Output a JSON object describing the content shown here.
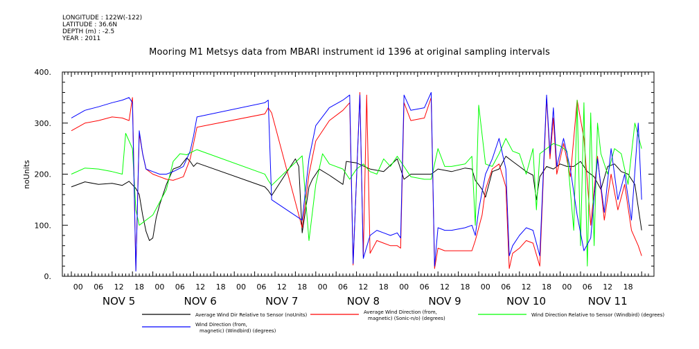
{
  "meta": {
    "longitude": "LONGITUDE : 122W(-122)",
    "latitude": "LATITUDE : 36.6N",
    "depth": "DEPTH (m) : -2.5",
    "year": "YEAR : 2011"
  },
  "chart_data": {
    "type": "line",
    "title": "Mooring M1 Metsys data from MBARI instrument id 1396 at original sampling intervals",
    "ylabel": "noUnits",
    "xlabel": "",
    "ylim": [
      0,
      400
    ],
    "yticks": [
      0,
      100,
      200,
      300,
      400
    ],
    "ytick_labels": [
      "0.",
      "100.",
      "200.",
      "300.",
      "400."
    ],
    "x_unit": "hours from 2011-11-04 22:00",
    "xlim": [
      0,
      168
    ],
    "hour_ticks": [
      "00",
      "06",
      "12",
      "18",
      "00",
      "06",
      "12",
      "18",
      "00",
      "06",
      "12",
      "18",
      "00",
      "06",
      "12",
      "18",
      "00",
      "06",
      "12",
      "18",
      "00",
      "06",
      "12",
      "18",
      "00",
      "06",
      "12",
      "18"
    ],
    "day_labels": [
      "NOV  5",
      "NOV  6",
      "NOV  7",
      "NOV  8",
      "NOV  9",
      "NOV 10",
      "NOV 11"
    ],
    "grid": false,
    "legend_position": "bottom",
    "series": [
      {
        "name": "Average Wind Dir Relative to Sensor (noUnits)",
        "color": "#000000",
        "points": [
          [
            0,
            175
          ],
          [
            4,
            185
          ],
          [
            8,
            180
          ],
          [
            12,
            182
          ],
          [
            15,
            178
          ],
          [
            17,
            186
          ],
          [
            19,
            172
          ],
          [
            20,
            160
          ],
          [
            21,
            120
          ],
          [
            22,
            88
          ],
          [
            23,
            70
          ],
          [
            24,
            75
          ],
          [
            25,
            115
          ],
          [
            26,
            140
          ],
          [
            27,
            160
          ],
          [
            28,
            180
          ],
          [
            30,
            210
          ],
          [
            32,
            215
          ],
          [
            34,
            232
          ],
          [
            35,
            225
          ],
          [
            36,
            215
          ],
          [
            37,
            222
          ],
          [
            57,
            175
          ],
          [
            58,
            168
          ],
          [
            59,
            158
          ],
          [
            66,
            230
          ],
          [
            67,
            215
          ],
          [
            68,
            85
          ],
          [
            70,
            175
          ],
          [
            71,
            190
          ],
          [
            73,
            210
          ],
          [
            76,
            198
          ],
          [
            80,
            180
          ],
          [
            81,
            225
          ],
          [
            84,
            222
          ],
          [
            88,
            210
          ],
          [
            92,
            205
          ],
          [
            96,
            230
          ],
          [
            98,
            190
          ],
          [
            100,
            200
          ],
          [
            104,
            200
          ],
          [
            106,
            200
          ],
          [
            108,
            210
          ],
          [
            112,
            205
          ],
          [
            116,
            212
          ],
          [
            118,
            210
          ],
          [
            119,
            188
          ],
          [
            121,
            170
          ],
          [
            122,
            155
          ],
          [
            124,
            205
          ],
          [
            126,
            210
          ],
          [
            128,
            235
          ],
          [
            130,
            225
          ],
          [
            132,
            215
          ],
          [
            134,
            205
          ],
          [
            136,
            198
          ],
          [
            137,
            150
          ],
          [
            138,
            195
          ],
          [
            140,
            215
          ],
          [
            142,
            210
          ],
          [
            144,
            220
          ],
          [
            146,
            215
          ],
          [
            148,
            215
          ],
          [
            150,
            225
          ],
          [
            152,
            205
          ],
          [
            154,
            195
          ],
          [
            156,
            170
          ],
          [
            158,
            215
          ],
          [
            160,
            220
          ],
          [
            162,
            205
          ],
          [
            164,
            200
          ],
          [
            166,
            180
          ],
          [
            168,
            90
          ]
        ]
      },
      {
        "name": "Average Wind Direction (from, magnetic) (Sonic-n/o) (degrees)",
        "color": "#ff0000",
        "points": [
          [
            0,
            285
          ],
          [
            4,
            300
          ],
          [
            8,
            305
          ],
          [
            12,
            312
          ],
          [
            15,
            310
          ],
          [
            17,
            305
          ],
          [
            18,
            350
          ],
          [
            19,
            12
          ],
          [
            20,
            280
          ],
          [
            21,
            240
          ],
          [
            22,
            210
          ],
          [
            24,
            200
          ],
          [
            26,
            195
          ],
          [
            28,
            190
          ],
          [
            30,
            188
          ],
          [
            33,
            195
          ],
          [
            35,
            230
          ],
          [
            36,
            260
          ],
          [
            37,
            292
          ],
          [
            57,
            318
          ],
          [
            58,
            330
          ],
          [
            59,
            320
          ],
          [
            68,
            95
          ],
          [
            70,
            200
          ],
          [
            72,
            265
          ],
          [
            76,
            305
          ],
          [
            80,
            325
          ],
          [
            82,
            340
          ],
          [
            83,
            22
          ],
          [
            85,
            360
          ],
          [
            86,
            40
          ],
          [
            87,
            355
          ],
          [
            88,
            45
          ],
          [
            90,
            70
          ],
          [
            92,
            65
          ],
          [
            94,
            60
          ],
          [
            96,
            60
          ],
          [
            97,
            55
          ],
          [
            98,
            340
          ],
          [
            100,
            305
          ],
          [
            104,
            310
          ],
          [
            106,
            350
          ],
          [
            107,
            15
          ],
          [
            108,
            55
          ],
          [
            110,
            50
          ],
          [
            112,
            50
          ],
          [
            116,
            50
          ],
          [
            118,
            50
          ],
          [
            119,
            70
          ],
          [
            121,
            120
          ],
          [
            122,
            170
          ],
          [
            124,
            210
          ],
          [
            126,
            220
          ],
          [
            128,
            175
          ],
          [
            129,
            15
          ],
          [
            130,
            45
          ],
          [
            132,
            55
          ],
          [
            134,
            70
          ],
          [
            136,
            65
          ],
          [
            138,
            20
          ],
          [
            140,
            350
          ],
          [
            141,
            230
          ],
          [
            142,
            310
          ],
          [
            143,
            200
          ],
          [
            145,
            260
          ],
          [
            147,
            195
          ],
          [
            149,
            345
          ],
          [
            151,
            270
          ],
          [
            153,
            100
          ],
          [
            155,
            235
          ],
          [
            157,
            110
          ],
          [
            159,
            200
          ],
          [
            161,
            130
          ],
          [
            163,
            180
          ],
          [
            165,
            90
          ],
          [
            167,
            60
          ],
          [
            168,
            40
          ]
        ]
      },
      {
        "name": "Wind Direction Relative to Sensor (Windbird) (degrees)",
        "color": "#00ff00",
        "points": [
          [
            0,
            200
          ],
          [
            4,
            212
          ],
          [
            8,
            210
          ],
          [
            12,
            205
          ],
          [
            15,
            200
          ],
          [
            16,
            280
          ],
          [
            18,
            250
          ],
          [
            19,
            130
          ],
          [
            20,
            100
          ],
          [
            22,
            110
          ],
          [
            24,
            120
          ],
          [
            26,
            145
          ],
          [
            28,
            170
          ],
          [
            30,
            225
          ],
          [
            32,
            240
          ],
          [
            34,
            238
          ],
          [
            36,
            245
          ],
          [
            37,
            248
          ],
          [
            57,
            200
          ],
          [
            58,
            188
          ],
          [
            59,
            178
          ],
          [
            68,
            236
          ],
          [
            70,
            70
          ],
          [
            72,
            180
          ],
          [
            74,
            240
          ],
          [
            76,
            220
          ],
          [
            80,
            210
          ],
          [
            82,
            190
          ],
          [
            84,
            210
          ],
          [
            86,
            220
          ],
          [
            88,
            205
          ],
          [
            90,
            200
          ],
          [
            92,
            230
          ],
          [
            94,
            215
          ],
          [
            96,
            235
          ],
          [
            98,
            215
          ],
          [
            100,
            195
          ],
          [
            104,
            190
          ],
          [
            106,
            190
          ],
          [
            108,
            250
          ],
          [
            110,
            215
          ],
          [
            112,
            215
          ],
          [
            116,
            220
          ],
          [
            118,
            235
          ],
          [
            119,
            100
          ],
          [
            120,
            335
          ],
          [
            122,
            220
          ],
          [
            124,
            215
          ],
          [
            126,
            240
          ],
          [
            128,
            270
          ],
          [
            130,
            245
          ],
          [
            132,
            240
          ],
          [
            134,
            200
          ],
          [
            136,
            250
          ],
          [
            137,
            130
          ],
          [
            138,
            240
          ],
          [
            140,
            250
          ],
          [
            142,
            260
          ],
          [
            144,
            255
          ],
          [
            146,
            245
          ],
          [
            148,
            90
          ],
          [
            149,
            345
          ],
          [
            150,
            60
          ],
          [
            151,
            340
          ],
          [
            152,
            20
          ],
          [
            153,
            320
          ],
          [
            154,
            60
          ],
          [
            155,
            300
          ],
          [
            156,
            240
          ],
          [
            158,
            200
          ],
          [
            160,
            250
          ],
          [
            162,
            240
          ],
          [
            164,
            180
          ],
          [
            166,
            300
          ],
          [
            168,
            250
          ]
        ]
      },
      {
        "name": "Wind Direction (from, magnetic) (Windbird) (degrees)",
        "color": "#0000ff",
        "points": [
          [
            0,
            310
          ],
          [
            4,
            325
          ],
          [
            8,
            332
          ],
          [
            12,
            340
          ],
          [
            15,
            345
          ],
          [
            17,
            350
          ],
          [
            18,
            340
          ],
          [
            19,
            10
          ],
          [
            20,
            285
          ],
          [
            21,
            240
          ],
          [
            22,
            210
          ],
          [
            24,
            205
          ],
          [
            26,
            200
          ],
          [
            28,
            200
          ],
          [
            30,
            205
          ],
          [
            33,
            215
          ],
          [
            35,
            245
          ],
          [
            36,
            275
          ],
          [
            37,
            312
          ],
          [
            57,
            340
          ],
          [
            58,
            345
          ],
          [
            59,
            150
          ],
          [
            68,
            110
          ],
          [
            70,
            230
          ],
          [
            72,
            295
          ],
          [
            76,
            330
          ],
          [
            80,
            345
          ],
          [
            82,
            355
          ],
          [
            83,
            25
          ],
          [
            85,
            355
          ],
          [
            86,
            35
          ],
          [
            88,
            80
          ],
          [
            90,
            90
          ],
          [
            92,
            85
          ],
          [
            94,
            80
          ],
          [
            96,
            85
          ],
          [
            97,
            75
          ],
          [
            98,
            355
          ],
          [
            100,
            325
          ],
          [
            104,
            330
          ],
          [
            106,
            360
          ],
          [
            107,
            20
          ],
          [
            108,
            95
          ],
          [
            110,
            90
          ],
          [
            112,
            90
          ],
          [
            116,
            95
          ],
          [
            118,
            100
          ],
          [
            119,
            80
          ],
          [
            120,
            130
          ],
          [
            122,
            200
          ],
          [
            124,
            230
          ],
          [
            126,
            270
          ],
          [
            128,
            210
          ],
          [
            129,
            40
          ],
          [
            130,
            60
          ],
          [
            132,
            80
          ],
          [
            134,
            95
          ],
          [
            136,
            90
          ],
          [
            138,
            40
          ],
          [
            140,
            355
          ],
          [
            141,
            240
          ],
          [
            142,
            330
          ],
          [
            143,
            215
          ],
          [
            145,
            270
          ],
          [
            147,
            210
          ],
          [
            149,
            120
          ],
          [
            151,
            50
          ],
          [
            153,
            75
          ],
          [
            155,
            230
          ],
          [
            157,
            125
          ],
          [
            159,
            250
          ],
          [
            161,
            150
          ],
          [
            163,
            200
          ],
          [
            165,
            110
          ],
          [
            167,
            300
          ],
          [
            168,
            150
          ]
        ]
      }
    ]
  },
  "legend": {
    "items": [
      {
        "color": "#000000",
        "label_lines": [
          "Average Wind Dir Relative to Sensor (noUnits)"
        ]
      },
      {
        "color": "#ff0000",
        "label_lines": [
          "Average Wind Direction (from,",
          "magnetic) (Sonic-n/o) (degrees)"
        ]
      },
      {
        "color": "#00ff00",
        "label_lines": [
          "Wind Direction Relative to Sensor (Windbird) (degrees)"
        ]
      },
      {
        "color": "#0000ff",
        "label_lines": [
          "Wind Direction (from,",
          "magnetic) (Windbird) (degrees)"
        ]
      }
    ]
  }
}
